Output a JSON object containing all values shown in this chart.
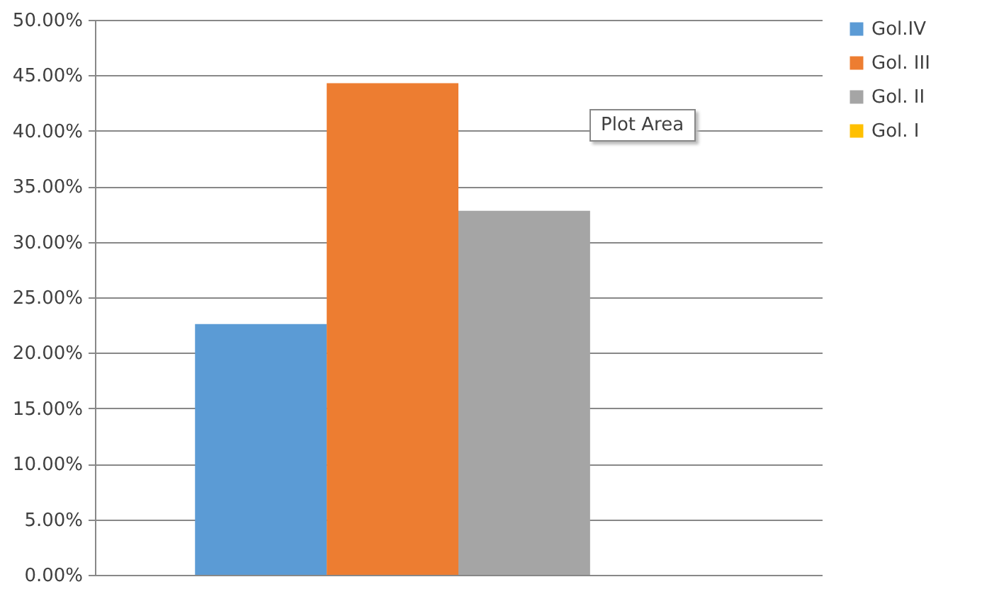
{
  "chart_data": {
    "type": "bar",
    "categories": [
      null
    ],
    "series": [
      {
        "name": "Gol.IV",
        "color": "#5b9bd5",
        "values": [
          22.6
        ]
      },
      {
        "name": "Gol. III",
        "color": "#ed7d31",
        "values": [
          44.3
        ]
      },
      {
        "name": "Gol. II",
        "color": "#a5a5a5",
        "values": [
          32.8
        ]
      },
      {
        "name": "Gol. I",
        "color": "#ffc000",
        "values": [
          0
        ]
      }
    ],
    "ylim": [
      0,
      50
    ],
    "yticks": [
      {
        "value": 0,
        "label": "0.00%"
      },
      {
        "value": 5,
        "label": "5.00%"
      },
      {
        "value": 10,
        "label": "10.00%"
      },
      {
        "value": 15,
        "label": "15.00%"
      },
      {
        "value": 20,
        "label": "20.00%"
      },
      {
        "value": 25,
        "label": "25.00%"
      },
      {
        "value": 30,
        "label": "30.00%"
      },
      {
        "value": 35,
        "label": "35.00%"
      },
      {
        "value": 40,
        "label": "40.00%"
      },
      {
        "value": 45,
        "label": "45.00%"
      },
      {
        "value": 50,
        "label": "50.00%"
      }
    ],
    "grid": "y",
    "legend": "right",
    "annotations": [
      "Plot Area"
    ]
  }
}
